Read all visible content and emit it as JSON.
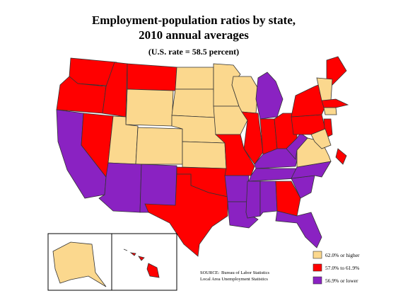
{
  "header": {
    "title_lines": [
      "Employment-population ratios by state,",
      "2010 annual averages"
    ],
    "subtitle": "(U.S. rate = 58.5 percent)"
  },
  "legend": [
    {
      "label": "62.0% or higher",
      "color": "#fbd88e"
    },
    {
      "label": "57.0% to 61.9%",
      "color": "#ff0000"
    },
    {
      "label": "56.9% or lower",
      "color": "#8a22c2"
    }
  ],
  "source": {
    "label": "SOURCE:",
    "lines": [
      "Bureau of Labor Statistics",
      "Local Area Unemployment Statistics"
    ]
  }
}
